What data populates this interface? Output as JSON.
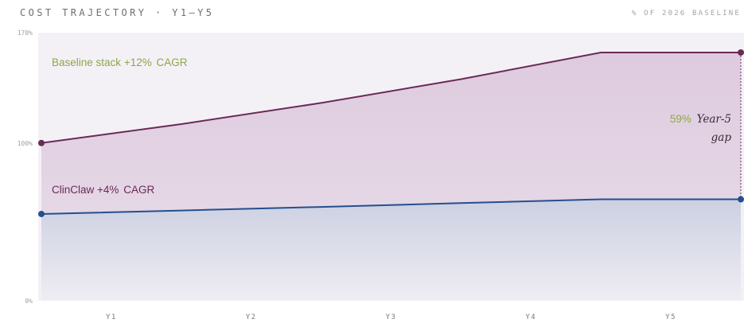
{
  "header": {
    "title": "COST TRAJECTORY · Y1–Y5",
    "subtitle": "% OF 2026 BASELINE"
  },
  "colors": {
    "baseline": "#6a2a57",
    "clinclaw": "#254f8e",
    "accent": "#8ea64a",
    "plot_bg": "#f4f1f6"
  },
  "chart_data": {
    "type": "line",
    "title": "COST TRAJECTORY · Y1–Y5",
    "subtitle": "% OF 2026 BASELINE",
    "categories": [
      "Y1",
      "Y2",
      "Y3",
      "Y4",
      "Y5"
    ],
    "ylim": [
      0,
      170
    ],
    "yticks": [
      0,
      100,
      170
    ],
    "ytick_labels": [
      "0%",
      "100%",
      "170%"
    ],
    "grid": false,
    "series": [
      {
        "name": "Baseline stack",
        "x": [
          0.5,
          1.5,
          2.5,
          3.5,
          4.5,
          5.5
        ],
        "values": [
          100,
          112,
          125.4,
          140.5,
          157.4,
          157.4
        ],
        "fill": "area",
        "label_name": "Baseline stack",
        "label_rate": "+12%",
        "label_suffix": "CAGR"
      },
      {
        "name": "ClinClaw",
        "x": [
          0.5,
          1.5,
          2.5,
          3.5,
          4.5,
          5.5
        ],
        "values": [
          55,
          57.2,
          59.5,
          61.9,
          64.3,
          64.3
        ],
        "fill": "area",
        "label_name": "ClinClaw",
        "label_rate": "+4%",
        "label_suffix": "CAGR"
      }
    ],
    "annotations": [
      {
        "value_text": "59%",
        "text_line1": "Year-5",
        "text_line2": "gap"
      }
    ]
  }
}
